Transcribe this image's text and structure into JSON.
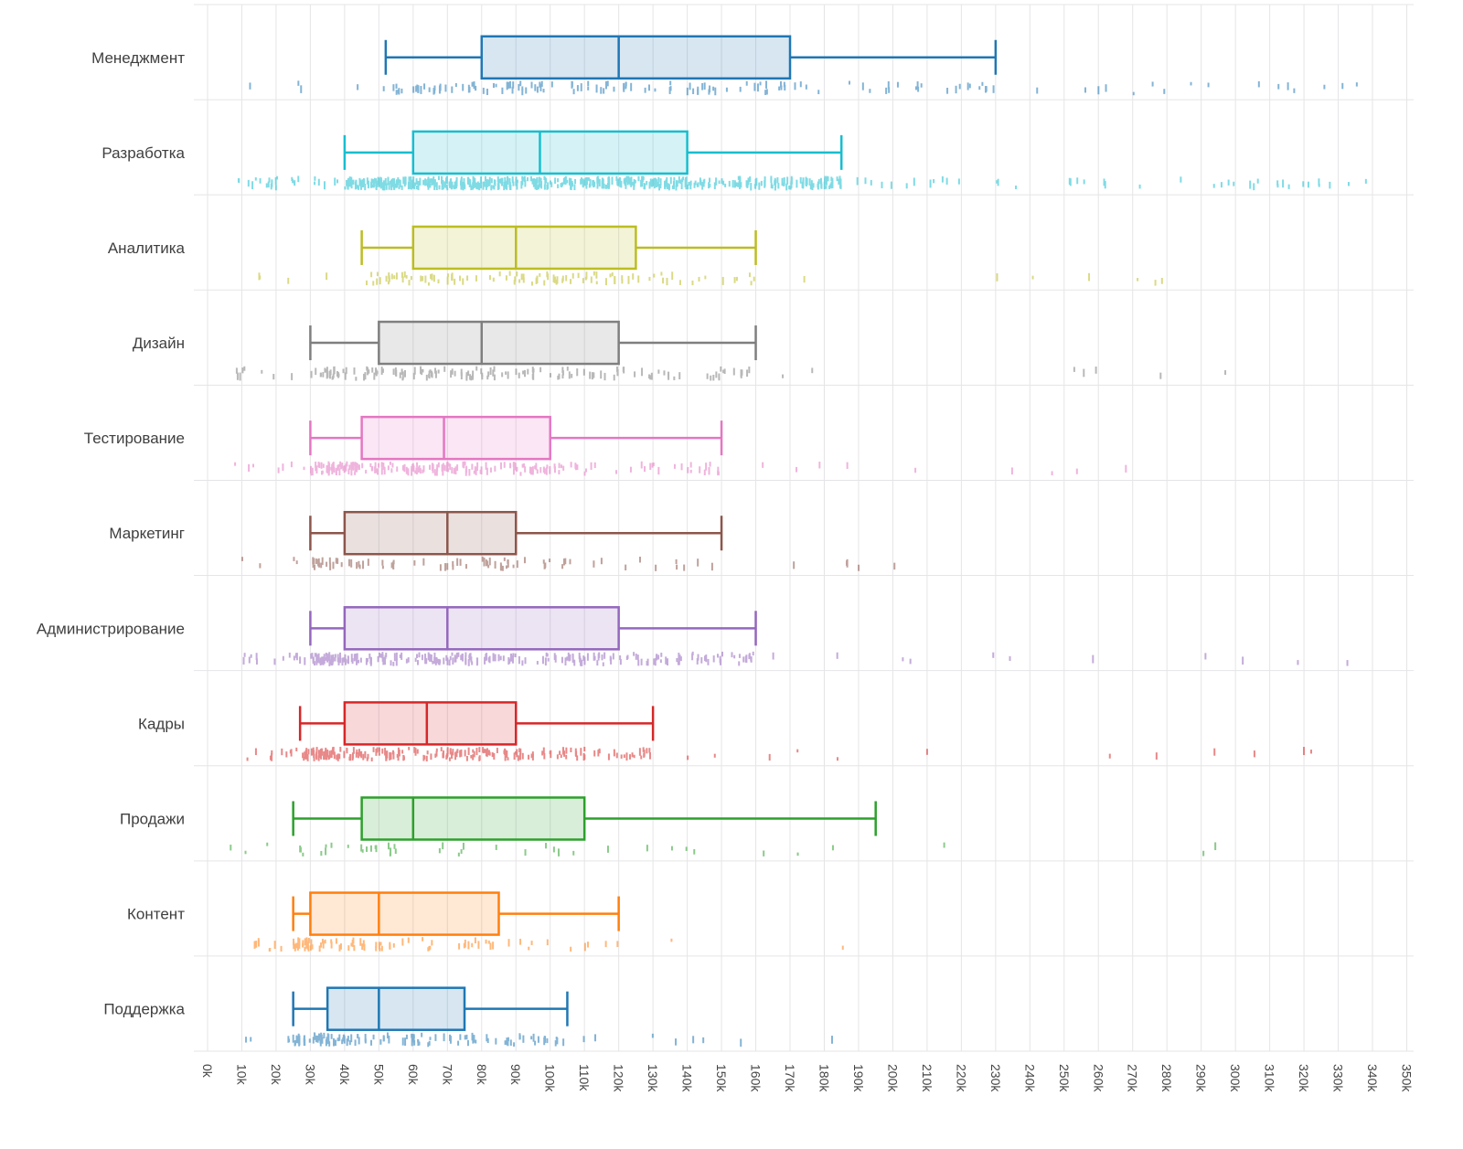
{
  "chart_data": {
    "type": "box",
    "orientation": "horizontal",
    "title": "",
    "xlabel": "",
    "ylabel": "",
    "legend": "none",
    "grid": true,
    "background": "#ffffff",
    "gridline_color": "#e5e5e7",
    "x_axis": {
      "min": 0,
      "max": 350000,
      "tick_step": 10000,
      "tick_labels": [
        "0k",
        "10k",
        "20k",
        "30k",
        "40k",
        "50k",
        "60k",
        "70k",
        "80k",
        "90k",
        "100k",
        "110k",
        "120k",
        "130k",
        "140k",
        "150k",
        "160k",
        "170k",
        "180k",
        "190k",
        "200k",
        "210k",
        "220k",
        "230k",
        "240k",
        "250k",
        "260k",
        "270k",
        "280k",
        "290k",
        "300k",
        "310k",
        "320k",
        "330k",
        "340k",
        "350k"
      ]
    },
    "categories": [
      "Менеджмент",
      "Разработка",
      "Аналитика",
      "Дизайн",
      "Тестирование",
      "Маркетинг",
      "Администрирование",
      "Кадры",
      "Продажи",
      "Контент",
      "Поддержка"
    ],
    "series": [
      {
        "label": "Менеджмент",
        "color": "#1f77b4",
        "whisker_low": 52000,
        "q1": 80000,
        "median": 120000,
        "q3": 170000,
        "whisker_high": 230000,
        "points_min": 8000,
        "points_max": 342000,
        "points_count": 150
      },
      {
        "label": "Разработка",
        "color": "#17becf",
        "whisker_low": 40000,
        "q1": 60000,
        "median": 97000,
        "q3": 140000,
        "whisker_high": 185000,
        "points_min": 3000,
        "points_max": 340000,
        "points_count": 600
      },
      {
        "label": "Аналитика",
        "color": "#bcbd22",
        "whisker_low": 45000,
        "q1": 60000,
        "median": 90000,
        "q3": 125000,
        "whisker_high": 160000,
        "points_min": 5000,
        "points_max": 300000,
        "points_count": 110
      },
      {
        "label": "Дизайн",
        "color": "#7f7f7f",
        "whisker_low": 30000,
        "q1": 50000,
        "median": 80000,
        "q3": 120000,
        "whisker_high": 160000,
        "points_min": 8000,
        "points_max": 302000,
        "points_count": 160
      },
      {
        "label": "Тестирование",
        "color": "#e377c2",
        "whisker_low": 30000,
        "q1": 45000,
        "median": 69000,
        "q3": 100000,
        "whisker_high": 150000,
        "points_min": 8000,
        "points_max": 310000,
        "points_count": 220
      },
      {
        "label": "Маркетинг",
        "color": "#8c564b",
        "whisker_low": 30000,
        "q1": 40000,
        "median": 70000,
        "q3": 90000,
        "whisker_high": 150000,
        "points_min": 10000,
        "points_max": 210000,
        "points_count": 85
      },
      {
        "label": "Администрирование",
        "color": "#9467bd",
        "whisker_low": 30000,
        "q1": 40000,
        "median": 70000,
        "q3": 120000,
        "whisker_high": 160000,
        "points_min": 8000,
        "points_max": 345000,
        "points_count": 280
      },
      {
        "label": "Кадры",
        "color": "#d62728",
        "whisker_low": 27000,
        "q1": 40000,
        "median": 64000,
        "q3": 90000,
        "whisker_high": 130000,
        "points_min": 10000,
        "points_max": 332000,
        "points_count": 220
      },
      {
        "label": "Продажи",
        "color": "#2ca02c",
        "whisker_low": 25000,
        "q1": 45000,
        "median": 60000,
        "q3": 110000,
        "whisker_high": 195000,
        "points_min": 5000,
        "points_max": 302000,
        "points_count": 45
      },
      {
        "label": "Контент",
        "color": "#ff7f0e",
        "whisker_low": 25000,
        "q1": 30000,
        "median": 50000,
        "q3": 85000,
        "whisker_high": 120000,
        "points_min": 12000,
        "points_max": 200000,
        "points_count": 90
      },
      {
        "label": "Поддержка",
        "color": "#1f77b4",
        "whisker_low": 25000,
        "q1": 35000,
        "median": 50000,
        "q3": 75000,
        "whisker_high": 105000,
        "points_min": 10000,
        "points_max": 200000,
        "points_count": 130
      }
    ]
  }
}
